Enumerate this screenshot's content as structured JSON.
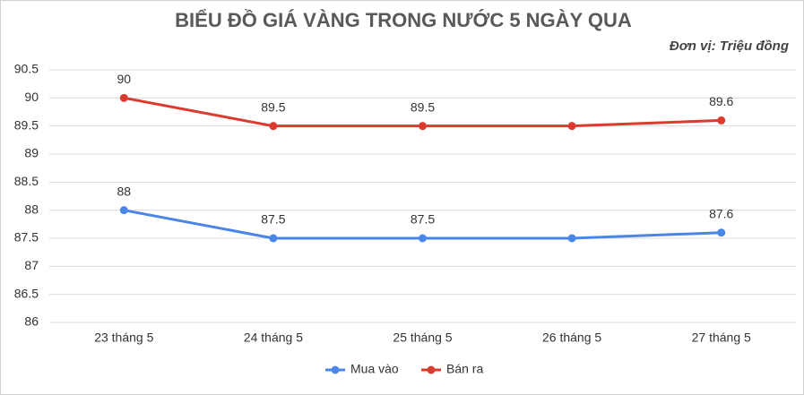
{
  "chart_data": {
    "type": "line",
    "title": "BIỂU ĐỒ GIÁ VÀNG TRONG NƯỚC 5 NGÀY QUA",
    "subtitle": "Đơn vị: Triệu đồng",
    "categories": [
      "23 tháng 5",
      "24 tháng 5",
      "25 tháng 5",
      "26 tháng 5",
      "27 tháng 5"
    ],
    "series": [
      {
        "name": "Mua vào",
        "color": "#4a86e8",
        "values": [
          88,
          87.5,
          87.5,
          87.5,
          87.6
        ],
        "value_labels": [
          "88",
          "87.5",
          "87.5",
          null,
          "87.6"
        ]
      },
      {
        "name": "Bán ra",
        "color": "#db3b2f",
        "values": [
          90,
          89.5,
          89.5,
          89.5,
          89.6
        ],
        "value_labels": [
          "90",
          "89.5",
          "89.5",
          null,
          "89.6"
        ]
      }
    ],
    "ylim": [
      86,
      90.5
    ],
    "yticks": [
      86,
      86.5,
      87,
      87.5,
      88,
      88.5,
      89,
      89.5,
      90,
      90.5
    ],
    "grid": true,
    "legend": "bottom"
  }
}
